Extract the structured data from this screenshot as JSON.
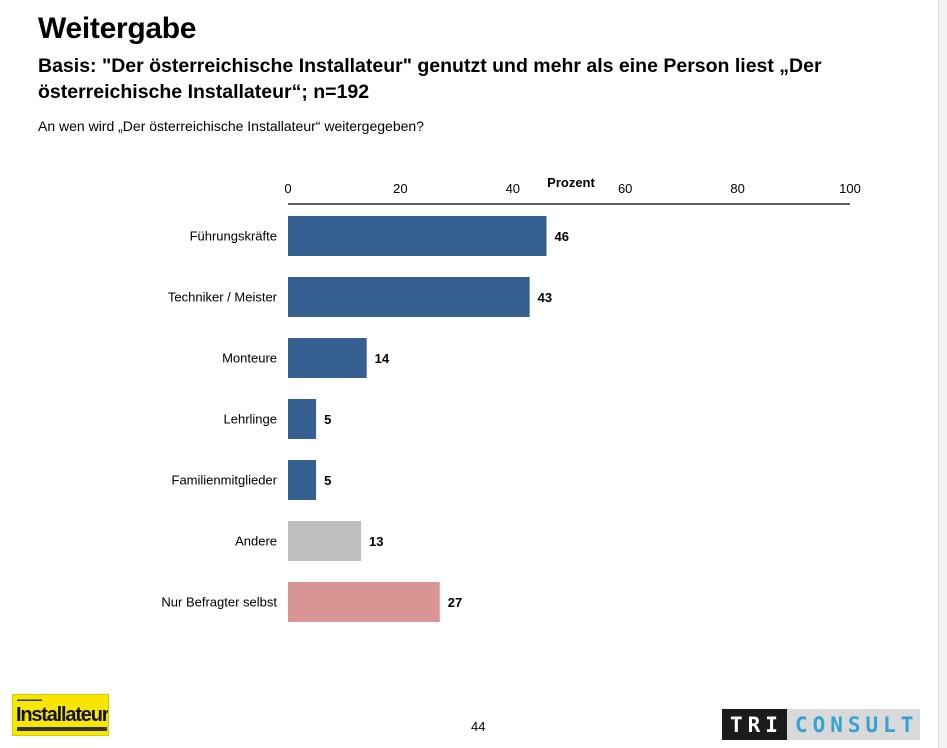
{
  "header": {
    "title": "Weitergabe",
    "subtitle": "Basis: \"Der österreichische Installateur\" genutzt und mehr als eine Person liest „Der österreichische Installateur“; n=192",
    "question": "An wen wird „Der österreichische Installateur“ weitergegeben?"
  },
  "footer": {
    "page_number": "44",
    "logo_left_text": "Installateur",
    "logo_right_part1": "TRI",
    "logo_right_part2": "CONSULT"
  },
  "chart_data": {
    "type": "bar",
    "orientation": "horizontal",
    "xlabel": "Prozent",
    "xlim": [
      0,
      100
    ],
    "x_ticks": [
      0,
      20,
      40,
      60,
      80,
      100
    ],
    "categories": [
      "Führungskräfte",
      "Techniker / Meister",
      "Monteure",
      "Lehrlinge",
      "Familienmitglieder",
      "Andere",
      "Nur Befragter selbst"
    ],
    "values": [
      46,
      43,
      14,
      5,
      5,
      13,
      27
    ],
    "bar_colors": [
      "#376092",
      "#376092",
      "#376092",
      "#376092",
      "#376092",
      "#bfbfbf",
      "#d99594"
    ],
    "grid": false
  }
}
